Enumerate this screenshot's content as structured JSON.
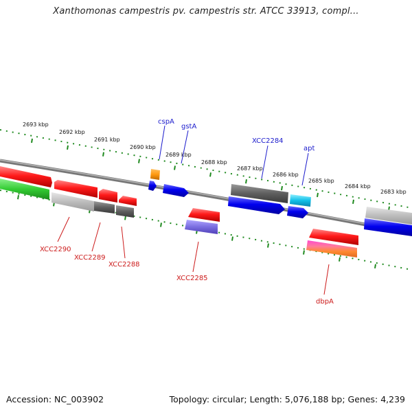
{
  "title": "Xanthomonas campestris pv. campestris str. ATCC 33913, compl...",
  "footer": {
    "accession": "Accession: NC_003902",
    "summary": "Topology: circular; Length: 5,076,188 bp; Genes: 4,239"
  },
  "colors": {
    "backbone": "#8a8a8a",
    "ticks": "#1f8a1f",
    "forward_label": "#1a1acc",
    "reverse_label": "#cc1a1a"
  },
  "kbp_labels": [
    "2693 kbp",
    "2692 kbp",
    "2691 kbp",
    "2690 kbp",
    "2689 kbp",
    "2688 kbp",
    "2687 kbp",
    "2686 kbp",
    "2685 kbp",
    "2684 kbp",
    "2683 kbp"
  ],
  "gene_labels": {
    "top": [
      "cspA",
      "gstA",
      "XCC2284",
      "apt"
    ],
    "bottom": [
      "XCC2290",
      "XCC2289",
      "XCC2288",
      "XCC2285",
      "dbpA"
    ]
  }
}
